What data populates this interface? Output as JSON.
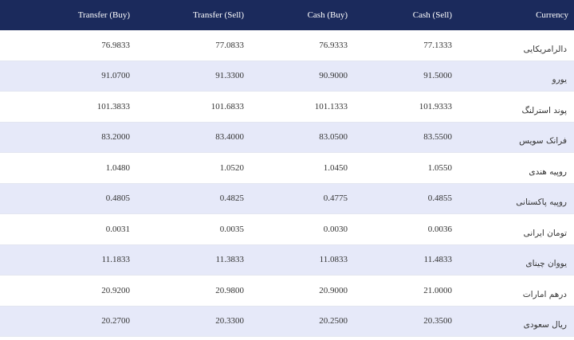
{
  "headers": [
    "Transfer (Buy)",
    "Transfer (Sell)",
    "Cash (Buy)",
    "Cash (Sell)",
    "Currency"
  ],
  "rows": [
    {
      "transfer_buy": "76.9833",
      "transfer_sell": "77.0833",
      "cash_buy": "76.9333",
      "cash_sell": "77.1333",
      "currency": "دالرامریکایی"
    },
    {
      "transfer_buy": "91.0700",
      "transfer_sell": "91.3300",
      "cash_buy": "90.9000",
      "cash_sell": "91.5000",
      "currency": "یورو"
    },
    {
      "transfer_buy": "101.3833",
      "transfer_sell": "101.6833",
      "cash_buy": "101.1333",
      "cash_sell": "101.9333",
      "currency": "پوند استرلنگ"
    },
    {
      "transfer_buy": "83.2000",
      "transfer_sell": "83.4000",
      "cash_buy": "83.0500",
      "cash_sell": "83.5500",
      "currency": "فرانک سویس"
    },
    {
      "transfer_buy": "1.0480",
      "transfer_sell": "1.0520",
      "cash_buy": "1.0450",
      "cash_sell": "1.0550",
      "currency": "روپیه هندی"
    },
    {
      "transfer_buy": "0.4805",
      "transfer_sell": "0.4825",
      "cash_buy": "0.4775",
      "cash_sell": "0.4855",
      "currency": "روپیه پاکستانی"
    },
    {
      "transfer_buy": "0.0031",
      "transfer_sell": "0.0035",
      "cash_buy": "0.0030",
      "cash_sell": "0.0036",
      "currency": "تومان ایرانی"
    },
    {
      "transfer_buy": "11.1833",
      "transfer_sell": "11.3833",
      "cash_buy": "11.0833",
      "cash_sell": "11.4833",
      "currency": "یووان چینای"
    },
    {
      "transfer_buy": "20.9200",
      "transfer_sell": "20.9800",
      "cash_buy": "20.9000",
      "cash_sell": "21.0000",
      "currency": "درهم امارات"
    },
    {
      "transfer_buy": "20.2700",
      "transfer_sell": "20.3300",
      "cash_buy": "20.2500",
      "cash_sell": "20.3500",
      "currency": "ریال سعودی"
    }
  ],
  "colors": {
    "header_bg": "#1b2a5c",
    "alt_row_bg": "#e6e9f9",
    "text": "#333333"
  }
}
